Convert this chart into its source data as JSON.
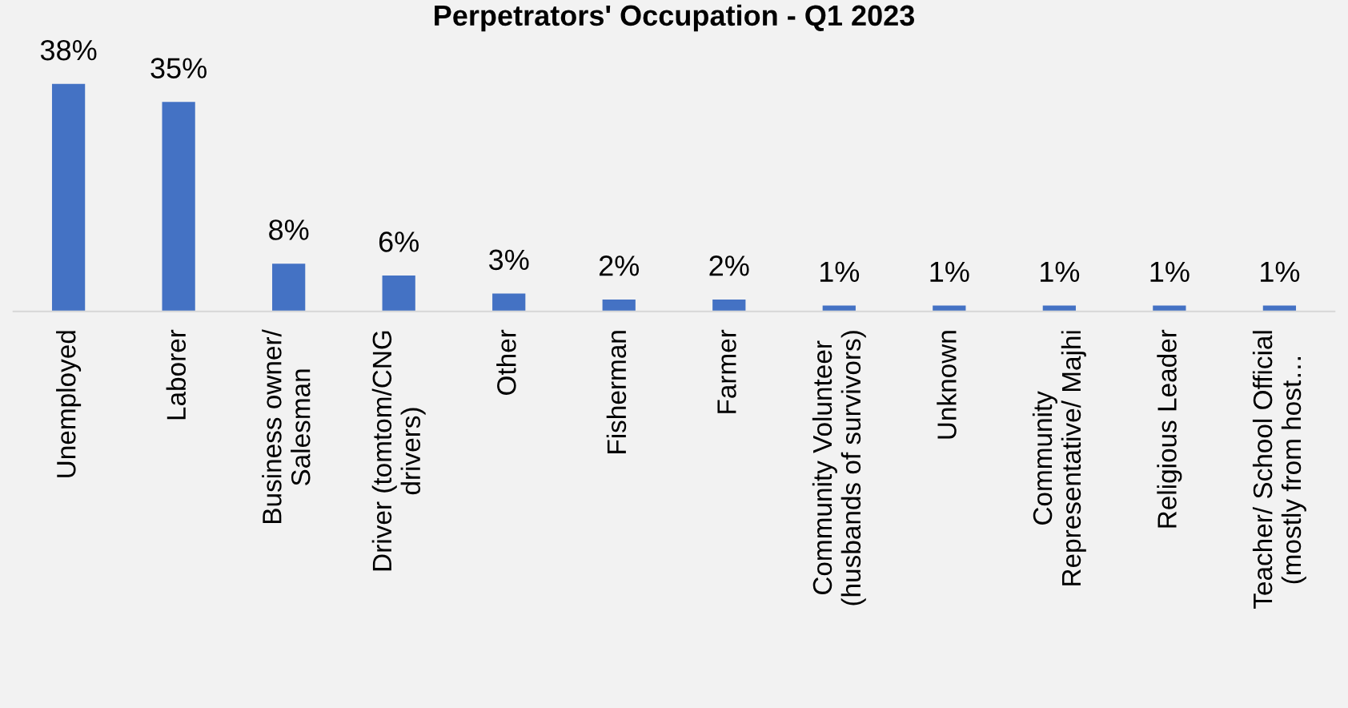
{
  "chart_data": {
    "type": "bar",
    "title": "Perpetrators' Occupation - Q1 2023",
    "categories": [
      "Unemployed",
      "Laborer",
      "Business owner/\nSalesman",
      "Driver (tomtom/CNG\ndrivers)",
      "Other",
      "Fisherman",
      "Farmer",
      "Community Volunteer\n(husbands of survivors)",
      "Unknown",
      "Community\nRepresentative/ Majhi",
      "Religious Leader",
      "Teacher/ School Official\n(mostly from host…"
    ],
    "values": [
      38,
      35,
      8,
      6,
      3,
      2,
      2,
      1,
      1,
      1,
      1,
      1
    ],
    "value_labels": [
      "38%",
      "35%",
      "8%",
      "6%",
      "3%",
      "2%",
      "2%",
      "1%",
      "1%",
      "1%",
      "1%",
      "1%"
    ],
    "color": "#4472c4",
    "grid": false,
    "legend": false
  }
}
